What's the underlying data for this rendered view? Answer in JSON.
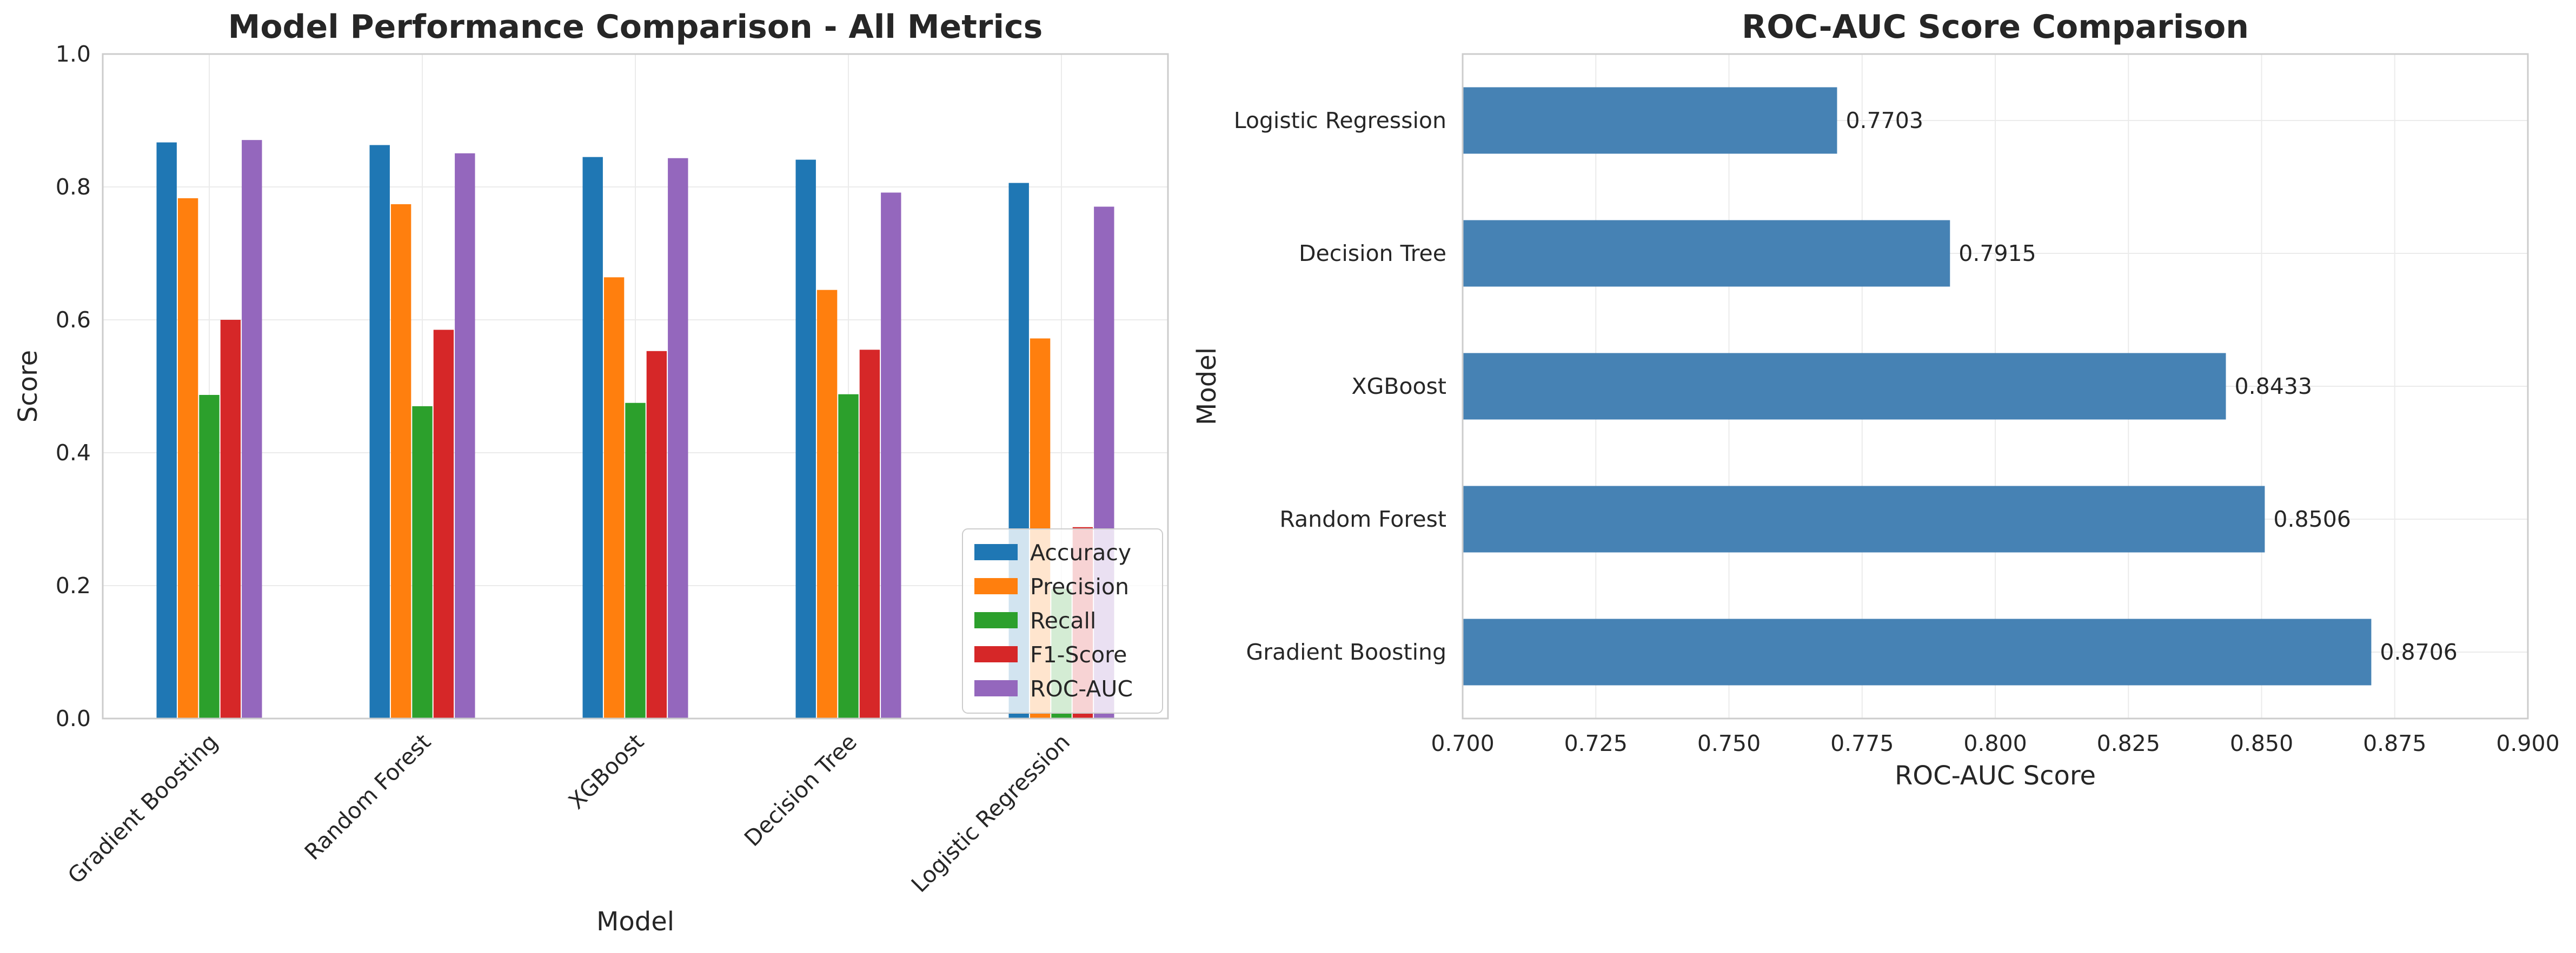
{
  "chart_data": [
    {
      "type": "bar",
      "title": "Model Performance Comparison - All Metrics",
      "xlabel": "Model",
      "ylabel": "Score",
      "ylim": [
        0,
        1.0
      ],
      "yticks": [
        "0.0",
        "0.2",
        "0.4",
        "0.6",
        "0.8",
        "1.0"
      ],
      "grid": true,
      "legend_position": "lower-right",
      "categories": [
        "Gradient Boosting",
        "Random Forest",
        "XGBoost",
        "Decision Tree",
        "Logistic Regression"
      ],
      "series": [
        {
          "name": "Accuracy",
          "color": "#1f77b4",
          "values": [
            0.867,
            0.863,
            0.845,
            0.841,
            0.806
          ]
        },
        {
          "name": "Precision",
          "color": "#ff7f0e",
          "values": [
            0.783,
            0.774,
            0.664,
            0.645,
            0.572
          ]
        },
        {
          "name": "Recall",
          "color": "#2ca02c",
          "values": [
            0.487,
            0.47,
            0.475,
            0.488,
            0.195
          ]
        },
        {
          "name": "F1-Score",
          "color": "#d62728",
          "values": [
            0.6,
            0.585,
            0.553,
            0.555,
            0.288
          ]
        },
        {
          "name": "ROC-AUC",
          "color": "#9467bd",
          "values": [
            0.8706,
            0.8506,
            0.8433,
            0.7915,
            0.7703
          ]
        }
      ]
    },
    {
      "type": "bar",
      "orientation": "horizontal",
      "title": "ROC-AUC Score Comparison",
      "xlabel": "ROC-AUC Score",
      "ylabel": "Model",
      "xlim": [
        0.7,
        0.9
      ],
      "xticks": [
        "0.700",
        "0.725",
        "0.750",
        "0.775",
        "0.800",
        "0.825",
        "0.850",
        "0.875",
        "0.900"
      ],
      "grid": true,
      "color": "#4682b4",
      "categories": [
        "Gradient Boosting",
        "Random Forest",
        "XGBoost",
        "Decision Tree",
        "Logistic Regression"
      ],
      "values": [
        0.8706,
        0.8506,
        0.8433,
        0.7915,
        0.7703
      ],
      "value_labels": [
        "0.8706",
        "0.8506",
        "0.8433",
        "0.7915",
        "0.7703"
      ]
    }
  ]
}
